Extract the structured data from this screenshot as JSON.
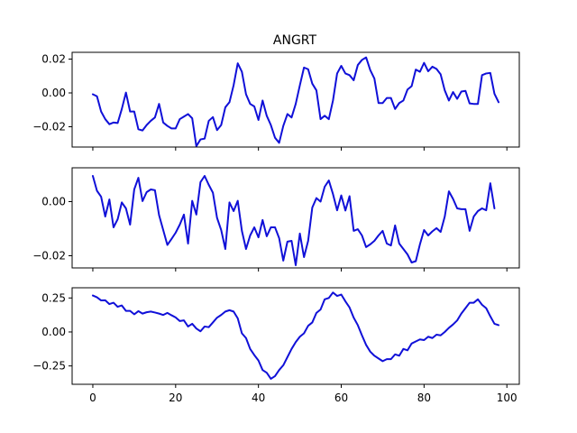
{
  "chart_data": {
    "type": "line",
    "title": "ANGRT",
    "series_color": "#1010d8",
    "x": [
      0,
      1,
      2,
      3,
      4,
      5,
      6,
      7,
      8,
      9,
      10,
      11,
      12,
      13,
      14,
      15,
      16,
      17,
      18,
      19,
      20,
      21,
      22,
      23,
      24,
      25,
      26,
      27,
      28,
      29,
      30,
      31,
      32,
      33,
      34,
      35,
      36,
      37,
      38,
      39,
      40,
      41,
      42,
      43,
      44,
      45,
      46,
      47,
      48,
      49,
      50,
      51,
      52,
      53,
      54,
      55,
      56,
      57,
      58,
      59,
      60,
      61,
      62,
      63,
      64,
      65,
      66,
      67,
      68,
      69,
      70,
      71,
      72,
      73,
      74,
      75,
      76,
      77,
      78,
      79,
      80,
      81,
      82,
      83,
      84,
      85,
      86,
      87,
      88,
      89,
      90,
      91,
      92,
      93,
      94,
      95,
      96,
      97,
      98
    ],
    "xlim": [
      -5,
      103
    ],
    "xticks": [
      0,
      20,
      40,
      60,
      80,
      100
    ],
    "xtick_labels": [
      "0",
      "20",
      "40",
      "60",
      "80",
      "100"
    ],
    "panels": [
      {
        "ylim": [
          -0.032,
          0.024
        ],
        "yticks": [
          0.02,
          0.0,
          -0.02
        ],
        "ytick_labels": [
          "0.02",
          "0.00",
          "−0.02"
        ],
        "show_x_labels": false,
        "values": [
          -0.0008,
          -0.002,
          -0.011,
          -0.0155,
          -0.0185,
          -0.0175,
          -0.0178,
          -0.0095,
          0.0002,
          -0.011,
          -0.011,
          -0.0215,
          -0.0222,
          -0.019,
          -0.0165,
          -0.0145,
          -0.0065,
          -0.0175,
          -0.0195,
          -0.021,
          -0.021,
          -0.0155,
          -0.014,
          -0.0125,
          -0.015,
          -0.0315,
          -0.0275,
          -0.027,
          -0.0165,
          -0.0143,
          -0.022,
          -0.019,
          -0.0085,
          -0.0055,
          0.0045,
          0.0175,
          0.0125,
          -0.0008,
          -0.0065,
          -0.008,
          -0.016,
          -0.0045,
          -0.0135,
          -0.019,
          -0.0265,
          -0.0295,
          -0.0195,
          -0.0125,
          -0.0145,
          -0.0065,
          0.0045,
          0.015,
          0.014,
          0.0055,
          0.0015,
          -0.0155,
          -0.0135,
          -0.0155,
          -0.0045,
          0.0115,
          0.016,
          0.0115,
          0.0105,
          0.0075,
          0.0165,
          0.0195,
          0.021,
          0.0135,
          0.0085,
          -0.006,
          -0.006,
          -0.003,
          -0.003,
          -0.0095,
          -0.006,
          -0.0045,
          0.002,
          0.004,
          0.0138,
          0.0125,
          0.0178,
          0.0128,
          0.0155,
          0.0142,
          0.011,
          0.0015,
          -0.0045,
          0.0005,
          -0.0035,
          0.0008,
          0.0012,
          -0.0062,
          -0.0065,
          -0.0065,
          0.0105,
          0.0115,
          0.0118,
          -0.0005,
          -0.0055
        ]
      },
      {
        "ylim": [
          -0.0245,
          0.0125
        ],
        "yticks": [
          0.0,
          -0.02
        ],
        "ytick_labels": [
          "0.00",
          "−0.02"
        ],
        "show_x_labels": false,
        "values": [
          0.0095,
          0.004,
          0.0018,
          -0.0055,
          0.0008,
          -0.0095,
          -0.0065,
          -0.0003,
          -0.0025,
          -0.0085,
          0.0045,
          0.0088,
          0.0002,
          0.0035,
          0.0045,
          0.0042,
          -0.005,
          -0.0105,
          -0.016,
          -0.0138,
          -0.0115,
          -0.0085,
          -0.0048,
          -0.0155,
          0.0003,
          -0.0048,
          0.0072,
          0.0095,
          0.0062,
          0.0033,
          -0.006,
          -0.0105,
          -0.0175,
          -0.0003,
          -0.0035,
          0.0003,
          -0.0108,
          -0.0175,
          -0.0125,
          -0.0095,
          -0.0132,
          -0.0068,
          -0.0128,
          -0.0095,
          -0.0095,
          -0.0135,
          -0.0218,
          -0.0148,
          -0.0145,
          -0.0235,
          -0.0118,
          -0.0205,
          -0.0145,
          -0.0022,
          0.0013,
          0.0,
          0.0055,
          0.0078,
          0.0028,
          -0.0032,
          0.0023,
          -0.0033,
          0.002,
          -0.0108,
          -0.0102,
          -0.0125,
          -0.0168,
          -0.0158,
          -0.0145,
          -0.0125,
          -0.0108,
          -0.0155,
          -0.0162,
          -0.0088,
          -0.0155,
          -0.0175,
          -0.0195,
          -0.0225,
          -0.022,
          -0.0158,
          -0.0105,
          -0.0125,
          -0.011,
          -0.0098,
          -0.0112,
          -0.0055,
          0.0038,
          0.001,
          -0.0025,
          -0.0028,
          -0.0028,
          -0.0108,
          -0.0055,
          -0.0035,
          -0.0025,
          -0.0032,
          0.0068,
          -0.0025
        ]
      },
      {
        "ylim": [
          -0.385,
          0.325
        ],
        "yticks": [
          0.25,
          0.0,
          -0.25
        ],
        "ytick_labels": [
          "0.25",
          "0.00",
          "−0.25"
        ],
        "show_x_labels": true,
        "values": [
          0.268,
          0.255,
          0.232,
          0.233,
          0.205,
          0.215,
          0.185,
          0.195,
          0.155,
          0.155,
          0.13,
          0.153,
          0.135,
          0.145,
          0.15,
          0.143,
          0.135,
          0.125,
          0.14,
          0.123,
          0.107,
          0.08,
          0.085,
          0.04,
          0.06,
          0.025,
          0.005,
          0.04,
          0.035,
          0.07,
          0.105,
          0.125,
          0.15,
          0.16,
          0.15,
          0.1,
          -0.01,
          -0.045,
          -0.125,
          -0.17,
          -0.21,
          -0.28,
          -0.3,
          -0.345,
          -0.325,
          -0.28,
          -0.245,
          -0.185,
          -0.125,
          -0.075,
          -0.035,
          -0.01,
          0.045,
          0.07,
          0.14,
          0.165,
          0.24,
          0.25,
          0.29,
          0.265,
          0.275,
          0.225,
          0.18,
          0.105,
          0.05,
          -0.025,
          -0.095,
          -0.145,
          -0.175,
          -0.195,
          -0.215,
          -0.2,
          -0.2,
          -0.165,
          -0.175,
          -0.125,
          -0.135,
          -0.085,
          -0.07,
          -0.055,
          -0.06,
          -0.035,
          -0.045,
          -0.02,
          -0.025,
          0.0,
          0.03,
          0.055,
          0.085,
          0.135,
          0.175,
          0.215,
          0.215,
          0.24,
          0.2,
          0.175,
          0.115,
          0.06,
          0.05
        ]
      }
    ]
  }
}
